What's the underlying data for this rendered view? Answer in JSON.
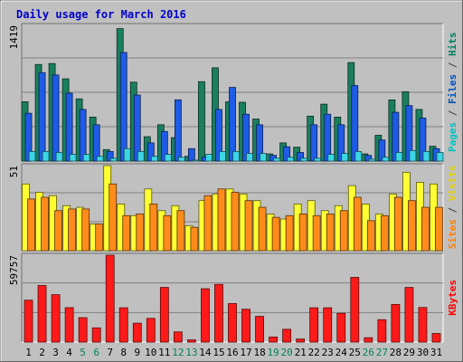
{
  "chart_data": {
    "type": "bar",
    "title": "Daily usage for March 2016",
    "categories": [
      "1",
      "2",
      "3",
      "4",
      "5",
      "6",
      "7",
      "8",
      "9",
      "10",
      "11",
      "12",
      "13",
      "14",
      "15",
      "16",
      "17",
      "18",
      "19",
      "20",
      "21",
      "22",
      "23",
      "24",
      "25",
      "26",
      "27",
      "28",
      "29",
      "30",
      "31"
    ],
    "weekend_days": [
      "5",
      "6",
      "12",
      "13",
      "19",
      "20",
      "26",
      "27"
    ],
    "panels": [
      {
        "id": "top",
        "max_label": "1419",
        "ymax": 1419,
        "labels": [
          {
            "text": "Pages",
            "color": "#00c0c0"
          },
          {
            "text": " / ",
            "color": "#404040"
          },
          {
            "text": "Files",
            "color": "#0050c0"
          },
          {
            "text": " / ",
            "color": "#404040"
          },
          {
            "text": "Hits",
            "color": "#008060"
          }
        ],
        "series": [
          {
            "name": "Hits",
            "color": "#1a7f5f",
            "values": [
              620,
              1010,
              1020,
              860,
              650,
              460,
              120,
              1385,
              825,
              255,
              380,
              245,
              50,
              830,
              975,
              620,
              615,
              440,
              75,
              190,
              145,
              470,
              595,
              460,
              1030,
              75,
              270,
              640,
              725,
              540,
              155
            ]
          },
          {
            "name": "Files",
            "color": "#1e5be6",
            "values": [
              500,
              925,
              900,
              710,
              540,
              380,
              100,
              1135,
              690,
              190,
              310,
              640,
              130,
              40,
              540,
              770,
              490,
              380,
              60,
              150,
              90,
              380,
              490,
              380,
              790,
              60,
              220,
              510,
              580,
              450,
              130
            ]
          },
          {
            "name": "Pages",
            "color": "#3cd6e6",
            "values": [
              100,
              100,
              90,
              70,
              70,
              50,
              30,
              130,
              100,
              50,
              70,
              40,
              10,
              70,
              100,
              100,
              80,
              80,
              30,
              40,
              30,
              30,
              70,
              80,
              100,
              20,
              40,
              90,
              110,
              100,
              90
            ]
          }
        ]
      },
      {
        "id": "mid",
        "max_label": "51",
        "ymax": 51,
        "labels": [
          {
            "text": "Sites",
            "color": "#ff8000"
          },
          {
            "text": " / ",
            "color": "#404040"
          },
          {
            "text": "Visits",
            "color": "#e0d000"
          }
        ],
        "series": [
          {
            "name": "Visits",
            "color": "#ffff33",
            "values": [
              40,
              35,
              33,
              27,
              26,
              16,
              51,
              28,
              21,
              37,
              24,
              27,
              15,
              30,
              34,
              37,
              34,
              30,
              22,
              19,
              28,
              30,
              24,
              27,
              39,
              28,
              22,
              34,
              47,
              41,
              40
            ]
          },
          {
            "name": "Sites",
            "color": "#ff8c1a",
            "values": [
              31,
              32,
              24,
              25,
              25,
              16,
              40,
              21,
              22,
              28,
              21,
              24,
              14,
              33,
              37,
              35,
              30,
              26,
              20,
              21,
              22,
              21,
              22,
              24,
              32,
              18,
              21,
              32,
              30,
              26,
              26
            ]
          }
        ]
      },
      {
        "id": "bot",
        "max_label": "59757",
        "ymax": 59757,
        "labels": [
          {
            "text": "KBytes",
            "color": "#ff0000"
          }
        ],
        "series": [
          {
            "name": "KBytes",
            "color": "#ff1a1a",
            "values": [
              28800,
              38900,
              32600,
              23700,
              16800,
              9800,
              59757,
              23600,
              13000,
              16300,
              37600,
              7000,
              1500,
              36700,
              39700,
              26500,
              22600,
              17700,
              3500,
              8800,
              2100,
              23600,
              23600,
              19800,
              44500,
              3000,
              15400,
              25900,
              37600,
              23800,
              5900
            ]
          }
        ]
      }
    ]
  }
}
